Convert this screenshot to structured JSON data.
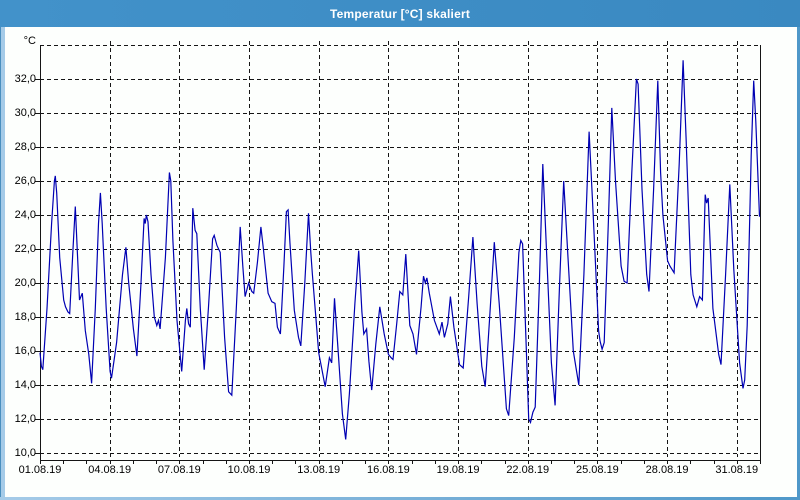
{
  "window": {
    "title": "Temperatur [°C] skaliert"
  },
  "colors": {
    "titlebar": "#3f90c8",
    "title_text": "#ffffff",
    "plot_bg": "#fdfffd",
    "grid": "#151515",
    "axis": "#151515",
    "line": "#0000b3",
    "frame_light": "#a5cbe8",
    "frame_dark": "#4f98c9"
  },
  "chart_data": {
    "type": "line",
    "title": "Temperatur [°C] skaliert",
    "unit_label": "°C",
    "xlabel": "",
    "ylabel": "°C",
    "ylim": [
      10,
      34
    ],
    "xlim_days": [
      0,
      31
    ],
    "grid": "dashed",
    "legend": "none",
    "y_ticks": [
      32,
      30,
      28,
      26,
      24,
      22,
      20,
      18,
      16,
      14,
      12,
      10
    ],
    "y_tick_labels": [
      "32,0",
      "30,0",
      "28,0",
      "26,0",
      "24,0",
      "22,0",
      "20,0",
      "18,0",
      "16,0",
      "14,0",
      "12,0",
      "10,0"
    ],
    "y_gridlines": [
      34,
      32,
      30,
      28,
      26,
      24,
      22,
      20,
      18,
      16,
      14,
      12,
      10
    ],
    "x_tick_days": [
      0,
      3,
      6,
      9,
      12,
      15,
      18,
      21,
      24,
      27,
      30
    ],
    "x_tick_labels": [
      "01.08.19",
      "04.08.19",
      "07.08.19",
      "10.08.19",
      "13.08.19",
      "16.08.19",
      "19.08.19",
      "22.08.19",
      "25.08.19",
      "28.08.19",
      "31.08.19"
    ],
    "minor_tick_every_days": 1,
    "series": [
      {
        "name": "Temperatur",
        "color": "#0000b3",
        "points": [
          [
            0.0,
            15.9
          ],
          [
            0.06,
            15.1
          ],
          [
            0.12,
            14.9
          ],
          [
            0.3,
            18.5
          ],
          [
            0.5,
            23.5
          ],
          [
            0.62,
            26.0
          ],
          [
            0.66,
            26.3
          ],
          [
            0.72,
            25.3
          ],
          [
            0.85,
            21.5
          ],
          [
            1.02,
            19.0
          ],
          [
            1.1,
            18.6
          ],
          [
            1.2,
            18.3
          ],
          [
            1.28,
            18.2
          ],
          [
            1.42,
            22.0
          ],
          [
            1.52,
            24.5
          ],
          [
            1.62,
            21.5
          ],
          [
            1.7,
            19.0
          ],
          [
            1.76,
            19.2
          ],
          [
            1.82,
            19.4
          ],
          [
            1.95,
            17.2
          ],
          [
            2.1,
            15.8
          ],
          [
            2.22,
            14.1
          ],
          [
            2.38,
            18.5
          ],
          [
            2.52,
            23.5
          ],
          [
            2.6,
            25.3
          ],
          [
            2.68,
            23.5
          ],
          [
            2.85,
            18.5
          ],
          [
            3.02,
            14.8
          ],
          [
            3.08,
            14.4
          ],
          [
            3.3,
            16.5
          ],
          [
            3.55,
            20.5
          ],
          [
            3.7,
            22.1
          ],
          [
            3.82,
            20.0
          ],
          [
            4.02,
            17.3
          ],
          [
            4.17,
            15.7
          ],
          [
            4.35,
            20.0
          ],
          [
            4.48,
            23.8
          ],
          [
            4.53,
            23.5
          ],
          [
            4.58,
            24.0
          ],
          [
            4.65,
            23.6
          ],
          [
            4.78,
            20.5
          ],
          [
            4.92,
            18.0
          ],
          [
            5.03,
            17.5
          ],
          [
            5.1,
            17.8
          ],
          [
            5.17,
            17.3
          ],
          [
            5.4,
            21.5
          ],
          [
            5.57,
            26.5
          ],
          [
            5.63,
            26.0
          ],
          [
            5.72,
            22.5
          ],
          [
            5.9,
            17.8
          ],
          [
            6.1,
            14.8
          ],
          [
            6.26,
            17.8
          ],
          [
            6.32,
            18.5
          ],
          [
            6.4,
            17.6
          ],
          [
            6.47,
            17.4
          ],
          [
            6.58,
            24.4
          ],
          [
            6.68,
            23.1
          ],
          [
            6.75,
            22.9
          ],
          [
            6.9,
            18.5
          ],
          [
            7.07,
            14.9
          ],
          [
            7.25,
            18.5
          ],
          [
            7.43,
            22.6
          ],
          [
            7.5,
            22.8
          ],
          [
            7.62,
            22.2
          ],
          [
            7.76,
            21.8
          ],
          [
            7.95,
            16.8
          ],
          [
            8.12,
            13.6
          ],
          [
            8.26,
            13.4
          ],
          [
            8.45,
            18.5
          ],
          [
            8.62,
            23.3
          ],
          [
            8.73,
            21.0
          ],
          [
            8.83,
            19.2
          ],
          [
            8.98,
            20.0
          ],
          [
            9.12,
            19.5
          ],
          [
            9.2,
            19.4
          ],
          [
            9.36,
            21.2
          ],
          [
            9.51,
            23.3
          ],
          [
            9.62,
            22.0
          ],
          [
            9.82,
            19.4
          ],
          [
            9.98,
            18.9
          ],
          [
            10.12,
            18.8
          ],
          [
            10.22,
            17.4
          ],
          [
            10.35,
            17.0
          ],
          [
            10.5,
            21.0
          ],
          [
            10.61,
            24.2
          ],
          [
            10.68,
            24.3
          ],
          [
            10.76,
            22.4
          ],
          [
            10.95,
            18.4
          ],
          [
            11.13,
            16.8
          ],
          [
            11.23,
            16.3
          ],
          [
            11.4,
            20.0
          ],
          [
            11.56,
            24.1
          ],
          [
            11.66,
            21.8
          ],
          [
            11.73,
            20.5
          ],
          [
            12.0,
            15.9
          ],
          [
            12.28,
            13.9
          ],
          [
            12.46,
            15.6
          ],
          [
            12.56,
            15.3
          ],
          [
            12.68,
            19.1
          ],
          [
            12.82,
            16.3
          ],
          [
            13.02,
            12.3
          ],
          [
            13.16,
            10.8
          ],
          [
            13.32,
            13.5
          ],
          [
            13.56,
            18.8
          ],
          [
            13.72,
            21.9
          ],
          [
            13.86,
            18.3
          ],
          [
            13.94,
            17.0
          ],
          [
            14.06,
            17.3
          ],
          [
            14.16,
            15.4
          ],
          [
            14.28,
            13.7
          ],
          [
            14.46,
            16.4
          ],
          [
            14.63,
            18.6
          ],
          [
            14.82,
            17.0
          ],
          [
            15.0,
            15.8
          ],
          [
            15.12,
            15.6
          ],
          [
            15.2,
            15.5
          ],
          [
            15.36,
            17.6
          ],
          [
            15.49,
            19.5
          ],
          [
            15.62,
            19.3
          ],
          [
            15.75,
            21.7
          ],
          [
            15.92,
            17.5
          ],
          [
            16.06,
            17.0
          ],
          [
            16.21,
            15.8
          ],
          [
            16.41,
            18.6
          ],
          [
            16.51,
            20.4
          ],
          [
            16.59,
            20.0
          ],
          [
            16.66,
            20.3
          ],
          [
            16.76,
            19.4
          ],
          [
            16.98,
            17.8
          ],
          [
            17.19,
            17.0
          ],
          [
            17.31,
            17.7
          ],
          [
            17.41,
            16.8
          ],
          [
            17.56,
            17.6
          ],
          [
            17.67,
            19.2
          ],
          [
            17.82,
            17.4
          ],
          [
            18.06,
            15.2
          ],
          [
            18.22,
            15.0
          ],
          [
            18.46,
            19.2
          ],
          [
            18.64,
            22.7
          ],
          [
            18.82,
            18.8
          ],
          [
            19.02,
            15.1
          ],
          [
            19.17,
            13.9
          ],
          [
            19.36,
            18.0
          ],
          [
            19.56,
            22.4
          ],
          [
            19.77,
            18.8
          ],
          [
            20.08,
            12.6
          ],
          [
            20.18,
            12.2
          ],
          [
            20.42,
            16.8
          ],
          [
            20.62,
            21.8
          ],
          [
            20.7,
            22.5
          ],
          [
            20.78,
            22.3
          ],
          [
            20.92,
            16.8
          ],
          [
            21.04,
            12.0
          ],
          [
            21.12,
            11.8
          ],
          [
            21.22,
            12.4
          ],
          [
            21.32,
            12.7
          ],
          [
            21.5,
            20.0
          ],
          [
            21.65,
            27.0
          ],
          [
            21.82,
            21.5
          ],
          [
            22.02,
            15.3
          ],
          [
            22.18,
            12.8
          ],
          [
            22.36,
            19.5
          ],
          [
            22.55,
            26.0
          ],
          [
            22.72,
            21.8
          ],
          [
            22.96,
            16.0
          ],
          [
            23.2,
            14.0
          ],
          [
            23.42,
            20.5
          ],
          [
            23.64,
            28.9
          ],
          [
            23.82,
            24.0
          ],
          [
            24.05,
            17.2
          ],
          [
            24.11,
            16.6
          ],
          [
            24.2,
            16.1
          ],
          [
            24.29,
            16.5
          ],
          [
            24.48,
            24.0
          ],
          [
            24.62,
            30.3
          ],
          [
            24.78,
            26.0
          ],
          [
            25.02,
            21.0
          ],
          [
            25.15,
            20.1
          ],
          [
            25.28,
            20.0
          ],
          [
            25.48,
            26.5
          ],
          [
            25.68,
            32.0
          ],
          [
            25.75,
            31.7
          ],
          [
            25.92,
            25.5
          ],
          [
            26.12,
            20.5
          ],
          [
            26.22,
            19.5
          ],
          [
            26.42,
            25.5
          ],
          [
            26.6,
            31.9
          ],
          [
            26.72,
            26.5
          ],
          [
            26.82,
            24.0
          ],
          [
            27.02,
            21.3
          ],
          [
            27.12,
            21.0
          ],
          [
            27.3,
            20.6
          ],
          [
            27.52,
            27.0
          ],
          [
            27.69,
            33.1
          ],
          [
            27.82,
            28.5
          ],
          [
            28.02,
            20.5
          ],
          [
            28.12,
            19.3
          ],
          [
            28.28,
            18.6
          ],
          [
            28.4,
            19.2
          ],
          [
            28.52,
            19.0
          ],
          [
            28.64,
            25.2
          ],
          [
            28.7,
            24.7
          ],
          [
            28.77,
            25.0
          ],
          [
            28.97,
            18.5
          ],
          [
            29.22,
            15.8
          ],
          [
            29.32,
            15.2
          ],
          [
            29.52,
            20.5
          ],
          [
            29.7,
            25.8
          ],
          [
            29.87,
            20.8
          ],
          [
            30.12,
            15.3
          ],
          [
            30.27,
            13.8
          ],
          [
            30.34,
            14.3
          ],
          [
            30.45,
            17.5
          ],
          [
            30.62,
            27.5
          ],
          [
            30.73,
            31.9
          ],
          [
            30.82,
            29.5
          ],
          [
            30.98,
            23.9
          ]
        ]
      }
    ]
  }
}
